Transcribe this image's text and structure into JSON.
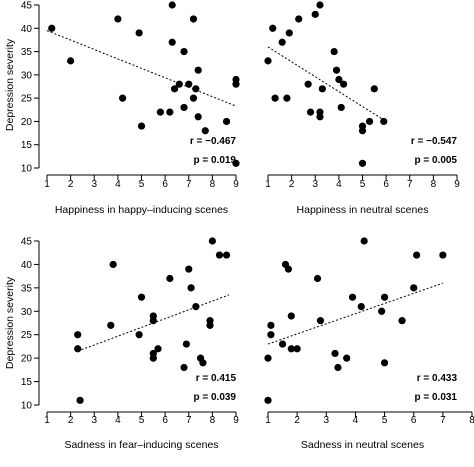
{
  "chart_data": [
    {
      "type": "scatter",
      "xlabel": "Happiness in happy–inducing scenes",
      "ylabel": "Depression severity",
      "xlim": [
        1,
        9
      ],
      "ylim": [
        10,
        45
      ],
      "xticks": [
        "1",
        "2",
        "3",
        "4",
        "5",
        "6",
        "7",
        "8",
        "9"
      ],
      "yticks": [
        "10",
        "15",
        "20",
        "25",
        "30",
        "35",
        "40",
        "45"
      ],
      "r_text": "r = −0.467",
      "p_text": "p = 0.019",
      "trend": {
        "x": [
          1,
          9
        ],
        "y": [
          39.5,
          23.3
        ]
      },
      "points": [
        {
          "x": 1.2,
          "y": 40
        },
        {
          "x": 2.0,
          "y": 33
        },
        {
          "x": 4.0,
          "y": 42
        },
        {
          "x": 4.2,
          "y": 25
        },
        {
          "x": 4.9,
          "y": 39
        },
        {
          "x": 5.0,
          "y": 19
        },
        {
          "x": 5.8,
          "y": 22
        },
        {
          "x": 6.2,
          "y": 22
        },
        {
          "x": 6.3,
          "y": 45
        },
        {
          "x": 6.3,
          "y": 37
        },
        {
          "x": 6.4,
          "y": 27
        },
        {
          "x": 6.6,
          "y": 28
        },
        {
          "x": 6.8,
          "y": 35
        },
        {
          "x": 6.8,
          "y": 23
        },
        {
          "x": 7.0,
          "y": 28
        },
        {
          "x": 7.2,
          "y": 42
        },
        {
          "x": 7.2,
          "y": 25
        },
        {
          "x": 7.3,
          "y": 27
        },
        {
          "x": 7.4,
          "y": 31
        },
        {
          "x": 7.4,
          "y": 21
        },
        {
          "x": 7.7,
          "y": 18
        },
        {
          "x": 8.6,
          "y": 20
        },
        {
          "x": 9.0,
          "y": 29
        },
        {
          "x": 9.0,
          "y": 28
        },
        {
          "x": 9.0,
          "y": 11
        }
      ]
    },
    {
      "type": "scatter",
      "xlabel": "Happiness in neutral scenes",
      "ylabel": "",
      "xlim": [
        1,
        9
      ],
      "ylim": [
        10,
        45
      ],
      "xticks": [
        "1",
        "2",
        "3",
        "4",
        "5",
        "6",
        "7",
        "8",
        "9"
      ],
      "yticks": [],
      "r_text": "r = −0.547",
      "p_text": "p = 0.005",
      "trend": {
        "x": [
          1,
          6
        ],
        "y": [
          36,
          20
        ]
      },
      "points": [
        {
          "x": 1.0,
          "y": 33
        },
        {
          "x": 1.2,
          "y": 40
        },
        {
          "x": 1.3,
          "y": 25
        },
        {
          "x": 1.6,
          "y": 37
        },
        {
          "x": 1.8,
          "y": 25
        },
        {
          "x": 1.9,
          "y": 39
        },
        {
          "x": 2.3,
          "y": 42
        },
        {
          "x": 2.7,
          "y": 28
        },
        {
          "x": 2.8,
          "y": 22
        },
        {
          "x": 3.0,
          "y": 43
        },
        {
          "x": 3.2,
          "y": 45
        },
        {
          "x": 3.2,
          "y": 22
        },
        {
          "x": 3.2,
          "y": 21
        },
        {
          "x": 3.3,
          "y": 27
        },
        {
          "x": 3.8,
          "y": 35
        },
        {
          "x": 3.9,
          "y": 31
        },
        {
          "x": 4.0,
          "y": 29
        },
        {
          "x": 4.1,
          "y": 23
        },
        {
          "x": 4.2,
          "y": 28
        },
        {
          "x": 5.0,
          "y": 19
        },
        {
          "x": 5.0,
          "y": 18
        },
        {
          "x": 5.0,
          "y": 11
        },
        {
          "x": 5.3,
          "y": 20
        },
        {
          "x": 5.5,
          "y": 27
        },
        {
          "x": 5.9,
          "y": 20
        }
      ]
    },
    {
      "type": "scatter",
      "xlabel": "Sadness in fear–inducing scenes",
      "ylabel": "Depression severity",
      "xlim": [
        1,
        9
      ],
      "ylim": [
        10,
        45
      ],
      "xticks": [
        "1",
        "2",
        "3",
        "4",
        "5",
        "6",
        "7",
        "8",
        "9"
      ],
      "yticks": [
        "10",
        "15",
        "20",
        "25",
        "30",
        "35",
        "40",
        "45"
      ],
      "r_text": "r = 0.415",
      "p_text": "p = 0.039",
      "trend": {
        "x": [
          2.3,
          8.7
        ],
        "y": [
          21.5,
          33.5
        ]
      },
      "points": [
        {
          "x": 2.3,
          "y": 25
        },
        {
          "x": 2.3,
          "y": 22
        },
        {
          "x": 2.4,
          "y": 11
        },
        {
          "x": 3.7,
          "y": 27
        },
        {
          "x": 3.8,
          "y": 40
        },
        {
          "x": 4.9,
          "y": 25
        },
        {
          "x": 5.0,
          "y": 33
        },
        {
          "x": 5.5,
          "y": 29
        },
        {
          "x": 5.5,
          "y": 28
        },
        {
          "x": 5.5,
          "y": 21
        },
        {
          "x": 5.5,
          "y": 20
        },
        {
          "x": 5.7,
          "y": 22
        },
        {
          "x": 6.2,
          "y": 37
        },
        {
          "x": 6.8,
          "y": 18
        },
        {
          "x": 6.9,
          "y": 23
        },
        {
          "x": 7.0,
          "y": 39
        },
        {
          "x": 7.1,
          "y": 35
        },
        {
          "x": 7.3,
          "y": 31
        },
        {
          "x": 7.5,
          "y": 20
        },
        {
          "x": 7.6,
          "y": 19
        },
        {
          "x": 7.9,
          "y": 28
        },
        {
          "x": 7.9,
          "y": 27
        },
        {
          "x": 8.0,
          "y": 45
        },
        {
          "x": 8.3,
          "y": 42
        },
        {
          "x": 8.6,
          "y": 42
        }
      ]
    },
    {
      "type": "scatter",
      "xlabel": "Sadness in neutral scenes",
      "ylabel": "",
      "xlim": [
        1,
        8
      ],
      "ylim": [
        10,
        45
      ],
      "xticks": [
        "1",
        "2",
        "3",
        "4",
        "5",
        "6",
        "7",
        "8"
      ],
      "yticks": [],
      "r_text": "r = 0.433",
      "p_text": "p = 0.031",
      "trend": {
        "x": [
          1,
          7
        ],
        "y": [
          23,
          36
        ]
      },
      "points": [
        {
          "x": 1.0,
          "y": 20
        },
        {
          "x": 1.0,
          "y": 11
        },
        {
          "x": 1.1,
          "y": 27
        },
        {
          "x": 1.1,
          "y": 25
        },
        {
          "x": 1.5,
          "y": 23
        },
        {
          "x": 1.6,
          "y": 40
        },
        {
          "x": 1.7,
          "y": 39
        },
        {
          "x": 1.8,
          "y": 29
        },
        {
          "x": 1.8,
          "y": 22
        },
        {
          "x": 2.0,
          "y": 22
        },
        {
          "x": 2.7,
          "y": 37
        },
        {
          "x": 2.8,
          "y": 28
        },
        {
          "x": 3.3,
          "y": 21
        },
        {
          "x": 3.4,
          "y": 18
        },
        {
          "x": 3.7,
          "y": 20
        },
        {
          "x": 3.9,
          "y": 33
        },
        {
          "x": 4.2,
          "y": 31
        },
        {
          "x": 4.3,
          "y": 45
        },
        {
          "x": 4.9,
          "y": 30
        },
        {
          "x": 5.0,
          "y": 33
        },
        {
          "x": 5.0,
          "y": 19
        },
        {
          "x": 5.6,
          "y": 28
        },
        {
          "x": 6.0,
          "y": 35
        },
        {
          "x": 6.1,
          "y": 42
        },
        {
          "x": 7.0,
          "y": 42
        }
      ]
    }
  ]
}
